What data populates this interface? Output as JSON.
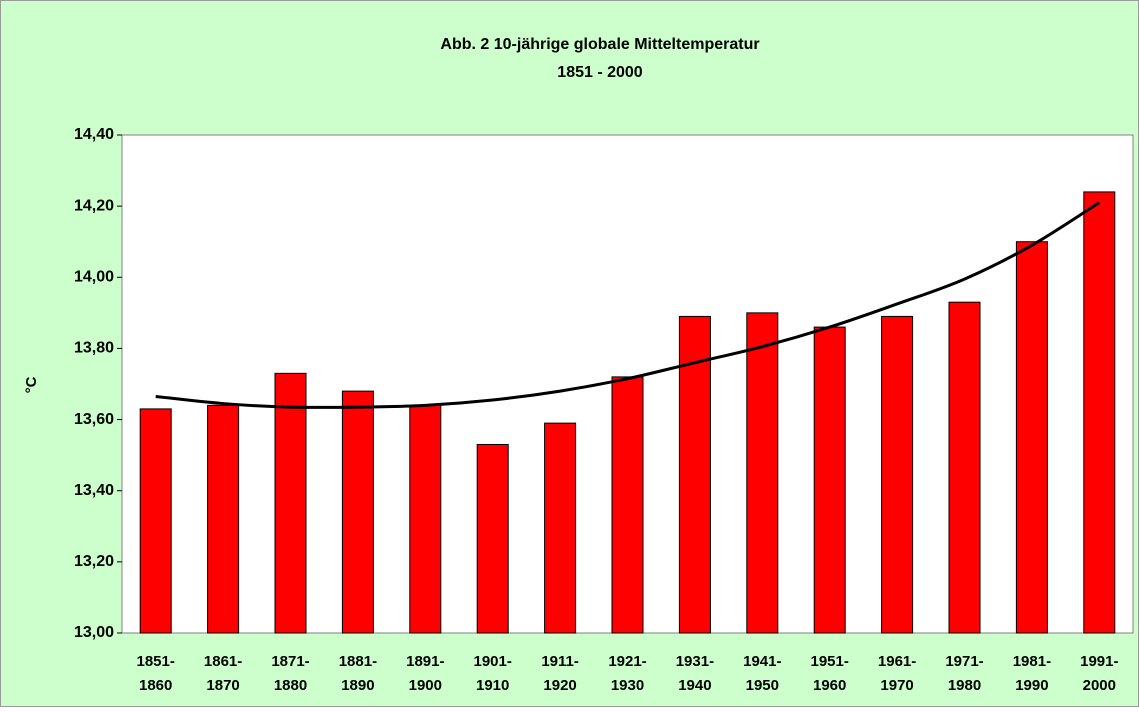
{
  "chart_data": {
    "type": "bar",
    "title": "Abb. 2  10-jährige globale Mitteltemperatur",
    "subtitle": "1851 - 2000",
    "y_label": "°C",
    "categories": [
      "1851-1860",
      "1861-1870",
      "1871-1880",
      "1881-1890",
      "1891-1900",
      "1901-1910",
      "1911-1920",
      "1921-1930",
      "1931-1940",
      "1941-1950",
      "1951-1960",
      "1961-1970",
      "1971-1980",
      "1981-1990",
      "1991-2000"
    ],
    "values": [
      13.63,
      13.64,
      13.73,
      13.68,
      13.64,
      13.53,
      13.59,
      13.72,
      13.89,
      13.9,
      13.86,
      13.89,
      13.93,
      14.1,
      14.24
    ],
    "color": "#ff0000",
    "trendline": {
      "color": "#000000",
      "values": [
        13.665,
        13.645,
        13.635,
        13.635,
        13.64,
        13.655,
        13.68,
        13.715,
        13.76,
        13.805,
        13.86,
        13.925,
        13.995,
        14.09,
        14.21
      ]
    },
    "ylim": [
      13.0,
      14.4
    ],
    "yticks": [
      {
        "value": 13.0,
        "label": "13,00"
      },
      {
        "value": 13.2,
        "label": "13,20"
      },
      {
        "value": 13.4,
        "label": "13,40"
      },
      {
        "value": 13.6,
        "label": "13,60"
      },
      {
        "value": 13.8,
        "label": "13,80"
      },
      {
        "value": 14.0,
        "label": "14,00"
      },
      {
        "value": 14.2,
        "label": "14,20"
      },
      {
        "value": 14.4,
        "label": "14,40"
      }
    ],
    "grid": false
  }
}
